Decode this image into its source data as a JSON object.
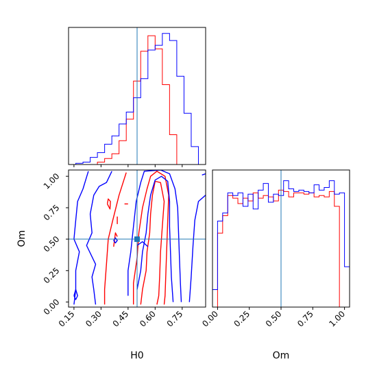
{
  "chart_data": {
    "type": "corner",
    "title": "",
    "parameters": [
      "H0",
      "Om"
    ],
    "truth": {
      "H0": 0.5,
      "Om": 0.5
    },
    "colors": {
      "series_a": "#ff0000",
      "series_b": "#0000ff",
      "truth": "#1f77b4",
      "frame": "#000000"
    },
    "panels": [
      {
        "id": "h0-histogram",
        "type": "histogram",
        "xlim": [
          0.12,
          0.88
        ],
        "bins": [
          0.12,
          0.16,
          0.2,
          0.24,
          0.28,
          0.32,
          0.36,
          0.4,
          0.44,
          0.48,
          0.52,
          0.56,
          0.6,
          0.64,
          0.68,
          0.72,
          0.76,
          0.8,
          0.84,
          0.88
        ],
        "series": [
          {
            "color_key": "series_a",
            "values": [
              0,
              0,
              0,
              0,
              2,
              5,
              9,
              20,
              38,
              70,
              95,
              108,
              97,
              67,
              25,
              0,
              0,
              0,
              0
            ]
          },
          {
            "color_key": "series_b",
            "values": [
              0,
              1,
              2,
              6,
              10,
              17,
              24,
              34,
              44,
              56,
              72,
              96,
              100,
              110,
              104,
              74,
              43,
              15,
              0
            ]
          }
        ],
        "ymax": 115,
        "xticks": [
          0.15,
          0.3,
          0.45,
          0.6,
          0.75
        ],
        "show_tick_labels": false
      },
      {
        "id": "om-histogram",
        "type": "histogram",
        "xlim": [
          -0.04,
          1.04
        ],
        "bins": [
          -0.04,
          0.0,
          0.04,
          0.08,
          0.12,
          0.16,
          0.2,
          0.24,
          0.28,
          0.32,
          0.36,
          0.4,
          0.44,
          0.48,
          0.52,
          0.56,
          0.6,
          0.64,
          0.68,
          0.72,
          0.76,
          0.8,
          0.84,
          0.88,
          0.92,
          0.96,
          1.0,
          1.04
        ],
        "series": [
          {
            "color_key": "series_a",
            "values": [
              0,
              55,
              68,
              83,
              81,
              77,
              81,
              79,
              85,
              81,
              83,
              82,
              79,
              87,
              86,
              82,
              85,
              85,
              84,
              85,
              82,
              83,
              82,
              86,
              75,
              0,
              0
            ]
          },
          {
            "color_key": "series_b",
            "values": [
              13,
              64,
              70,
              85,
              83,
              85,
              75,
              84,
              73,
              87,
              92,
              78,
              84,
              83,
              94,
              88,
              86,
              87,
              86,
              85,
              91,
              87,
              89,
              94,
              84,
              85,
              30
            ]
          }
        ],
        "ymax": 102,
        "xticks": [
          0.0,
          0.25,
          0.5,
          0.75,
          1.0
        ],
        "xtick_labels": [
          "0.00",
          "0.25",
          "0.50",
          "0.75",
          "1.00"
        ],
        "xlabel": "Om"
      },
      {
        "id": "h0-om-contour",
        "type": "contour",
        "xlim": [
          0.12,
          0.88
        ],
        "ylim": [
          -0.04,
          1.05
        ],
        "xticks": [
          0.15,
          0.3,
          0.45,
          0.6,
          0.75
        ],
        "xtick_labels": [
          "0.15",
          "0.30",
          "0.45",
          "0.60",
          "0.75"
        ],
        "yticks": [
          0.0,
          0.25,
          0.5,
          0.75,
          1.0
        ],
        "ytick_labels": [
          "0.00",
          "0.25",
          "0.50",
          "0.75",
          "1.00"
        ],
        "xlabel": "H0",
        "ylabel": "Om",
        "series": [
          {
            "color_key": "series_a",
            "contours": [
              [
                [
                  0.52,
                  -0.02
                ],
                [
                  0.53,
                  0.1
                ],
                [
                  0.55,
                  0.25
                ],
                [
                  0.555,
                  0.4
                ],
                [
                  0.57,
                  0.55
                ],
                [
                  0.575,
                  0.7
                ],
                [
                  0.585,
                  0.85
                ],
                [
                  0.6,
                  0.96
                ],
                [
                  0.63,
                  0.95
                ],
                [
                  0.65,
                  0.8
                ],
                [
                  0.64,
                  0.6
                ],
                [
                  0.63,
                  0.4
                ],
                [
                  0.625,
                  0.2
                ],
                [
                  0.62,
                  0.05
                ],
                [
                  0.61,
                  -0.02
                ]
              ],
              [
                [
                  0.48,
                  -0.02
                ],
                [
                  0.48,
                  0.15
                ],
                [
                  0.5,
                  0.35
                ],
                [
                  0.51,
                  0.55
                ],
                [
                  0.53,
                  0.75
                ],
                [
                  0.555,
                  0.9
                ],
                [
                  0.575,
                  1.0
                ],
                [
                  0.61,
                  1.04
                ],
                [
                  0.655,
                  1.0
                ],
                [
                  0.675,
                  0.85
                ],
                [
                  0.67,
                  0.65
                ],
                [
                  0.665,
                  0.45
                ],
                [
                  0.66,
                  0.25
                ],
                [
                  0.655,
                  0.05
                ],
                [
                  0.65,
                  -0.02
                ]
              ],
              [
                [
                  0.44,
                  1.03
                ],
                [
                  0.4,
                  0.85
                ],
                [
                  0.365,
                  0.65
                ],
                [
                  0.34,
                  0.5
                ],
                [
                  0.33,
                  0.3
                ],
                [
                  0.32,
                  0.1
                ],
                [
                  0.32,
                  -0.02
                ]
              ],
              [
                [
                  0.335,
                  0.78
                ],
                [
                  0.35,
                  0.74
                ],
                [
                  0.352,
                  0.8
                ],
                [
                  0.34,
                  0.82
                ],
                [
                  0.335,
                  0.78
                ]
              ],
              [
                [
                  0.43,
                  0.78
                ],
                [
                  0.45,
                  0.78
                ]
              ],
              [
                [
                  0.39,
                  0.62
                ],
                [
                  0.39,
                  0.68
                ]
              ],
              [
                [
                  0.37,
                  0.44
                ],
                [
                  0.38,
                  0.55
                ],
                [
                  0.39,
                  0.52
                ]
              ]
            ]
          },
          {
            "color_key": "series_b",
            "contours": [
              [
                [
                  0.5,
                  0.1
                ],
                [
                  0.52,
                  0.25
                ],
                [
                  0.53,
                  0.4
                ],
                [
                  0.55,
                  0.55
                ],
                [
                  0.56,
                  0.7
                ],
                [
                  0.575,
                  0.85
                ],
                [
                  0.6,
                  0.97
                ],
                [
                  0.635,
                  1.0
                ],
                [
                  0.67,
                  0.96
                ],
                [
                  0.68,
                  0.8
                ],
                [
                  0.68,
                  0.6
                ],
                [
                  0.685,
                  0.4
                ],
                [
                  0.69,
                  0.2
                ],
                [
                  0.7,
                  0.0
                ]
              ],
              [
                [
                  0.45,
                  0.05
                ],
                [
                  0.45,
                  0.25
                ],
                [
                  0.465,
                  0.4
                ],
                [
                  0.48,
                  0.6
                ],
                [
                  0.495,
                  0.8
                ],
                [
                  0.52,
                  0.95
                ],
                [
                  0.54,
                  1.04
                ],
                [
                  0.63,
                  1.05
                ],
                [
                  0.68,
                  1.02
                ],
                [
                  0.71,
                  0.9
                ],
                [
                  0.725,
                  0.75
                ],
                [
                  0.73,
                  0.55
                ],
                [
                  0.735,
                  0.35
                ],
                [
                  0.74,
                  0.15
                ],
                [
                  0.745,
                  0.0
                ]
              ],
              [
                [
                  0.79,
                  0.0
                ],
                [
                  0.8,
                  0.2
                ],
                [
                  0.81,
                  0.45
                ],
                [
                  0.82,
                  0.65
                ],
                [
                  0.84,
                  0.8
                ],
                [
                  0.88,
                  0.85
                ]
              ],
              [
                [
                  0.36,
                  1.04
                ],
                [
                  0.33,
                  0.95
                ],
                [
                  0.29,
                  0.92
                ],
                [
                  0.26,
                  0.85
                ],
                [
                  0.24,
                  0.7
                ],
                [
                  0.25,
                  0.55
                ],
                [
                  0.22,
                  0.45
                ],
                [
                  0.27,
                  0.3
                ],
                [
                  0.25,
                  0.2
                ],
                [
                  0.26,
                  0.1
                ],
                [
                  0.27,
                  -0.02
                ]
              ],
              [
                [
                  0.23,
                  1.04
                ],
                [
                  0.2,
                  0.9
                ],
                [
                  0.17,
                  0.8
                ],
                [
                  0.16,
                  0.65
                ],
                [
                  0.15,
                  0.5
                ],
                [
                  0.18,
                  0.4
                ],
                [
                  0.16,
                  0.25
                ],
                [
                  0.16,
                  0.1
                ],
                [
                  0.15,
                  -0.02
                ]
              ],
              [
                [
                  0.15,
                  0.05
                ],
                [
                  0.16,
                  0.1
                ],
                [
                  0.17,
                  0.05
                ],
                [
                  0.16,
                  0.02
                ],
                [
                  0.15,
                  0.05
                ]
              ],
              [
                [
                  0.37,
                  0.49
                ],
                [
                  0.38,
                  0.51
                ],
                [
                  0.39,
                  0.49
                ],
                [
                  0.38,
                  0.47
                ],
                [
                  0.37,
                  0.49
                ]
              ],
              [
                [
                  0.5,
                  0.45
                ],
                [
                  0.53,
                  0.48
                ],
                [
                  0.56,
                  0.44
                ]
              ],
              [
                [
                  0.86,
                  1.01
                ],
                [
                  0.88,
                  1.02
                ]
              ]
            ]
          }
        ]
      }
    ]
  }
}
